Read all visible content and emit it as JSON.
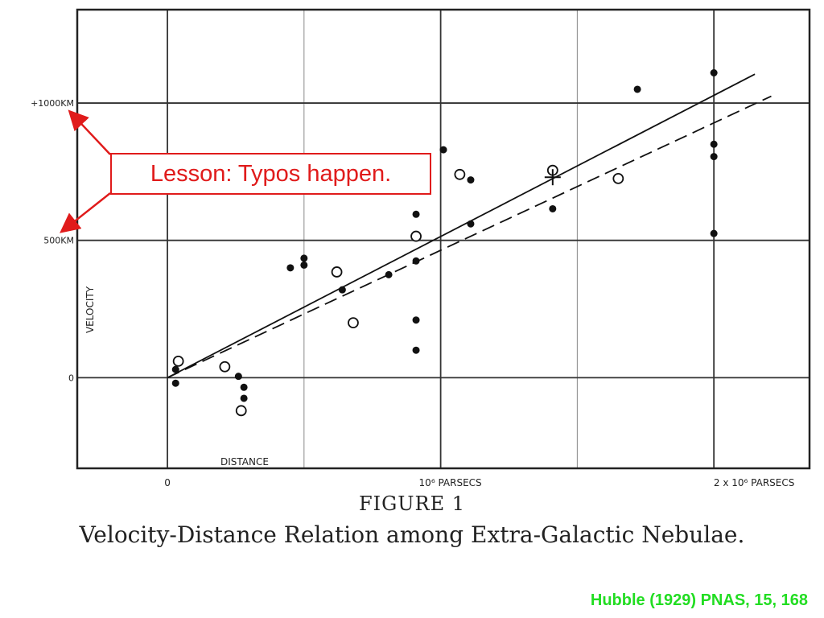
{
  "chart_data": {
    "type": "scatter",
    "title": "Velocity-Distance Relation among Extra-Galactic Nebulae.",
    "figure_label": "FIGURE 1",
    "xlabel": "DISTANCE",
    "ylabel": "VELOCITY",
    "xlim": [
      -0.33,
      2.35
    ],
    "ylim": [
      -330,
      1340
    ],
    "x_unit": "10^6 parsecs",
    "y_unit": "km/s",
    "grid": true,
    "xticks": [
      {
        "value": 0,
        "label": "0"
      },
      {
        "value": 1,
        "label": "10⁶ PARSECS"
      },
      {
        "value": 2,
        "label": "2 x 10⁶ PARSECS"
      }
    ],
    "yticks": [
      {
        "value": 0,
        "label": "0"
      },
      {
        "value": 500,
        "label": "500KM"
      },
      {
        "value": 1000,
        "label": "+1000KM"
      }
    ],
    "series": [
      {
        "marker": "filled-circle",
        "points": [
          [
            0.03,
            -20
          ],
          [
            0.03,
            30
          ],
          [
            0.26,
            5
          ],
          [
            0.28,
            -35
          ],
          [
            0.28,
            -75
          ],
          [
            0.45,
            400
          ],
          [
            0.5,
            410
          ],
          [
            0.5,
            435
          ],
          [
            0.64,
            320
          ],
          [
            0.81,
            375
          ],
          [
            0.91,
            100
          ],
          [
            0.91,
            210
          ],
          [
            0.91,
            425
          ],
          [
            0.91,
            595
          ],
          [
            1.01,
            830
          ],
          [
            1.11,
            720
          ],
          [
            1.11,
            560
          ],
          [
            1.41,
            615
          ],
          [
            1.72,
            1050
          ],
          [
            2.0,
            1110
          ],
          [
            2.0,
            850
          ],
          [
            2.0,
            805
          ],
          [
            2.0,
            525
          ]
        ]
      },
      {
        "marker": "open-circle",
        "points": [
          [
            0.04,
            60
          ],
          [
            0.21,
            40
          ],
          [
            0.27,
            -120
          ],
          [
            0.62,
            385
          ],
          [
            0.68,
            200
          ],
          [
            0.91,
            515
          ],
          [
            1.07,
            740
          ],
          [
            1.41,
            755
          ],
          [
            1.65,
            725
          ]
        ]
      },
      {
        "marker": "cross",
        "points": [
          [
            1.41,
            730
          ]
        ]
      }
    ],
    "lines": [
      {
        "style": "solid",
        "from": [
          0.0,
          0
        ],
        "to": [
          2.15,
          1105
        ]
      },
      {
        "style": "dashed",
        "from": [
          0.0,
          0
        ],
        "to": [
          2.21,
          1025
        ]
      }
    ]
  },
  "annotation": {
    "text": "Lesson: Typos happen.",
    "color": "#e01b1b"
  },
  "citation": {
    "text": "Hubble (1929) PNAS, 15, 168",
    "color": "#22dd22"
  }
}
